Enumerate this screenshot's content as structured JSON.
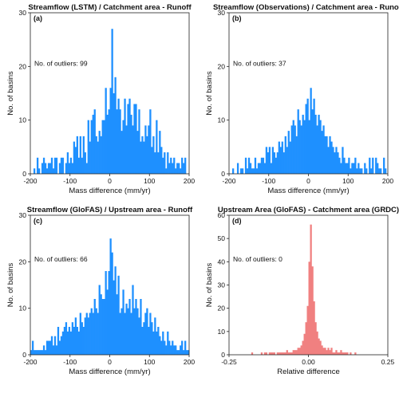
{
  "chart_data": [
    {
      "type": "bar",
      "title": "Streamflow (LSTM) / Catchment area - Runoff",
      "panel_label": "(a)",
      "annotation": "No. of outliers: 99",
      "xlabel": "Mass difference (mm/yr)",
      "ylabel": "No. of basins",
      "xlim": [
        -200,
        200
      ],
      "ylim": [
        0,
        30
      ],
      "xticks": [
        "-200",
        "-100",
        "0",
        "100",
        "200"
      ],
      "yticks": [
        "0",
        "10",
        "20",
        "30"
      ],
      "bin_width": 4,
      "bin_start": -200,
      "color": "#1e90ff",
      "values": [
        0,
        0,
        1,
        0,
        3,
        1,
        0,
        2,
        3,
        2,
        1,
        2,
        2,
        3,
        1,
        3,
        3,
        0,
        2,
        3,
        3,
        0,
        2,
        4,
        2,
        3,
        2,
        6,
        5,
        7,
        3,
        7,
        3,
        7,
        4,
        2,
        10,
        6,
        10,
        11,
        12,
        7,
        6,
        8,
        7,
        10,
        10,
        16,
        11,
        12,
        16,
        27,
        15,
        18,
        12,
        14,
        12,
        8,
        10,
        14,
        9,
        13,
        14,
        11,
        9,
        13,
        13,
        8,
        12,
        6,
        7,
        6,
        9,
        7,
        9,
        12,
        5,
        7,
        4,
        10,
        4,
        8,
        5,
        3,
        4,
        1,
        4,
        2,
        3,
        2,
        3,
        1,
        2,
        2,
        1,
        3,
        2,
        3,
        0,
        0
      ]
    },
    {
      "type": "bar",
      "title": "Streamflow (Observations) / Catchment area - Runoff",
      "panel_label": "(b)",
      "annotation": "No. of outliers: 37",
      "xlabel": "Mass difference (mm/yr)",
      "ylabel": "No. of basins",
      "xlim": [
        -200,
        200
      ],
      "ylim": [
        0,
        30
      ],
      "xticks": [
        "-200",
        "-100",
        "0",
        "100",
        "200"
      ],
      "yticks": [
        "0",
        "10",
        "20",
        "30"
      ],
      "bin_width": 4,
      "bin_start": -200,
      "color": "#1e90ff",
      "values": [
        0,
        0,
        1,
        0,
        0,
        2,
        0,
        1,
        1,
        0,
        3,
        1,
        3,
        2,
        1,
        1,
        3,
        1,
        2,
        2,
        3,
        3,
        2,
        5,
        4,
        5,
        2,
        5,
        4,
        3,
        4,
        6,
        5,
        6,
        4,
        7,
        5,
        8,
        6,
        9,
        10,
        9,
        7,
        12,
        10,
        9,
        11,
        10,
        13,
        14,
        10,
        16,
        12,
        14,
        11,
        9,
        11,
        10,
        8,
        9,
        7,
        7,
        5,
        7,
        6,
        5,
        4,
        5,
        4,
        3,
        2,
        5,
        3,
        2,
        2,
        3,
        1,
        2,
        2,
        3,
        1,
        2,
        1,
        1,
        0,
        2,
        1,
        0,
        3,
        1,
        3,
        0,
        3,
        2,
        1,
        1,
        0,
        3,
        1,
        0
      ]
    },
    {
      "type": "bar",
      "title": "Streamflow (GloFAS) / Upstream area - Runoff",
      "panel_label": "(c)",
      "annotation": "No. of outliers: 66",
      "xlabel": "Mass difference (mm/yr)",
      "ylabel": "No. of basins",
      "xlim": [
        -200,
        200
      ],
      "ylim": [
        0,
        30
      ],
      "xticks": [
        "-200",
        "-100",
        "0",
        "100",
        "200"
      ],
      "yticks": [
        "0",
        "10",
        "20",
        "30"
      ],
      "bin_width": 4,
      "bin_start": -200,
      "color": "#1e90ff",
      "values": [
        1,
        3,
        1,
        1,
        1,
        1,
        1,
        1,
        2,
        1,
        3,
        3,
        3,
        4,
        2,
        4,
        2,
        6,
        3,
        4,
        5,
        6,
        7,
        5,
        6,
        5,
        7,
        6,
        8,
        6,
        5,
        9,
        7,
        6,
        8,
        9,
        8,
        9,
        10,
        9,
        12,
        10,
        9,
        15,
        13,
        12,
        12,
        18,
        14,
        18,
        25,
        22,
        16,
        19,
        13,
        17,
        9,
        10,
        14,
        9,
        11,
        10,
        12,
        9,
        15,
        10,
        12,
        10,
        8,
        12,
        6,
        7,
        9,
        10,
        6,
        9,
        7,
        5,
        8,
        5,
        6,
        4,
        3,
        5,
        3,
        2,
        5,
        3,
        2,
        3,
        2,
        2,
        1,
        1,
        2,
        3,
        1,
        3,
        1,
        1
      ]
    },
    {
      "type": "bar",
      "title": "Upstream Area (GloFAS) - Catchment area (GRDC)",
      "panel_label": "(d)",
      "annotation": "No. of outliers: 0",
      "xlabel": "Relative difference",
      "ylabel": "No. of basins",
      "xlim": [
        -0.25,
        0.25
      ],
      "ylim": [
        0,
        60
      ],
      "xticks": [
        "-0.25",
        "0.00",
        "0.25"
      ],
      "yticks": [
        "0",
        "10",
        "20",
        "30",
        "40",
        "50",
        "60"
      ],
      "bin_width": 0.005,
      "bin_start": -0.25,
      "color": "#f08080",
      "values": [
        0,
        0,
        0,
        0,
        0,
        0,
        0,
        0,
        0,
        0,
        0,
        0,
        0,
        0,
        1,
        0,
        0,
        0,
        0,
        0,
        1,
        0,
        1,
        1,
        0,
        1,
        1,
        1,
        1,
        0,
        1,
        1,
        1,
        1,
        1,
        1,
        2,
        1,
        1,
        1,
        2,
        2,
        2,
        3,
        3,
        4,
        6,
        9,
        14,
        21,
        40,
        56,
        38,
        23,
        14,
        10,
        7,
        6,
        4,
        3,
        3,
        2,
        3,
        2,
        3,
        1,
        1,
        2,
        1,
        1,
        2,
        1,
        1,
        1,
        1,
        0,
        1,
        0,
        0,
        1,
        0,
        0,
        0,
        0,
        0,
        0,
        0,
        0,
        0,
        0,
        0,
        0,
        0,
        0,
        0,
        0,
        0,
        0,
        0,
        0
      ]
    }
  ]
}
